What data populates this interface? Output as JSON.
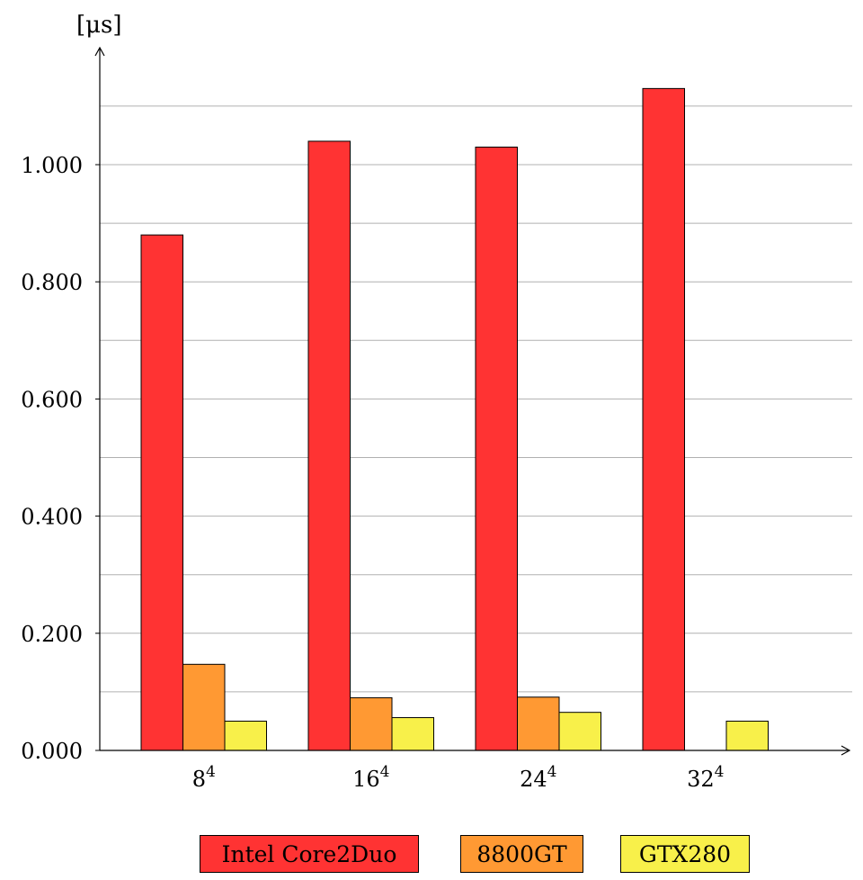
{
  "chart_data": {
    "type": "bar",
    "ylabel": "[μs]",
    "categories": [
      {
        "base": "8",
        "exp": "4"
      },
      {
        "base": "16",
        "exp": "4"
      },
      {
        "base": "24",
        "exp": "4"
      },
      {
        "base": "32",
        "exp": "4"
      }
    ],
    "yticks": [
      "0.000",
      "0.200",
      "0.400",
      "0.600",
      "0.800",
      "1.000"
    ],
    "ylim": [
      0,
      1.2
    ],
    "grid": true,
    "legend_position": "bottom",
    "series": [
      {
        "name": "Intel Core2Duo",
        "color": "#ff3333",
        "values": [
          0.88,
          1.04,
          1.03,
          1.13
        ]
      },
      {
        "name": "8800GT",
        "color": "#ff9933",
        "values": [
          0.147,
          0.09,
          0.091,
          null
        ]
      },
      {
        "name": "GTX280",
        "color": "#f8f04a",
        "values": [
          0.05,
          0.056,
          0.065,
          0.05
        ]
      }
    ]
  }
}
